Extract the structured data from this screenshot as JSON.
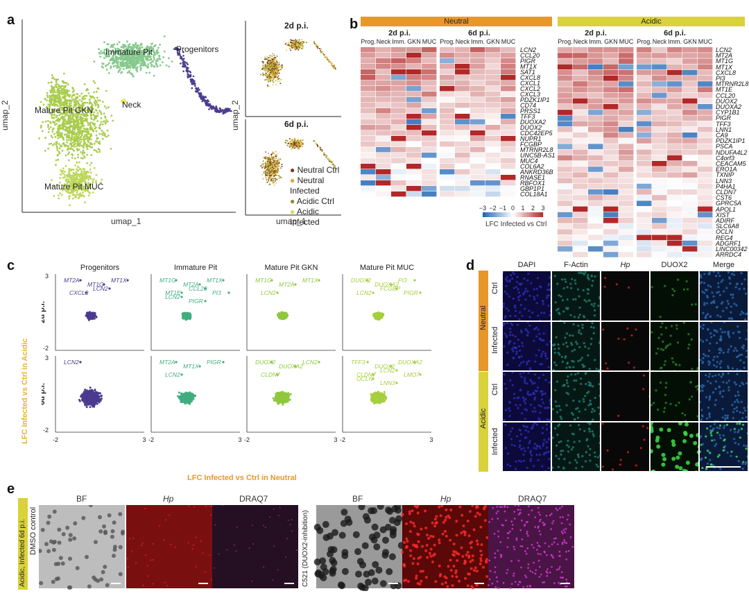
{
  "panel_labels": {
    "a": "a",
    "b": "b",
    "c": "c",
    "d": "d",
    "e": "e"
  },
  "panel_a": {
    "clusters": [
      "Immature Pit",
      "Progenitors",
      "Neck",
      "Mature Pit GKN",
      "Mature Pit MUC"
    ],
    "xlabel": "umap_1",
    "ylabel": "umap_2",
    "small_titles": [
      "2d p.i.",
      "6d p.i."
    ],
    "legend": [
      "Neutral Ctrl",
      "Neutral Infected",
      "Acidic Ctrl",
      "Acidic Infected"
    ],
    "colors": {
      "immature": "#86c98d",
      "progenitors": "#4b3b8f",
      "neck": "#f0e25a",
      "gkn": "#a9cc4c",
      "muc": "#bcd65a",
      "neutral_ctrl": "#7a3a1e",
      "neutral_infected": "#e3a23a",
      "acidic_ctrl": "#8a8a2a",
      "acidic_infected": "#d7d65a"
    }
  },
  "panel_b": {
    "group_neutral": "Neutral",
    "group_acidic": "Acidic",
    "time_2d": "2d p.i.",
    "time_6d": "6d p.i.",
    "columns": [
      "Prog.",
      "Neck",
      "Imm.",
      "GKN",
      "MUC"
    ],
    "neutral_genes": [
      "LCN2",
      "CCL20",
      "PIGR",
      "MT1X",
      "SAT1",
      "CXCL8",
      "CXCL1",
      "CXCL2",
      "CXCL3",
      "PDZK1IP1",
      "CD74",
      "PRSS1",
      "TFF3",
      "DUOXA2",
      "DUOX2",
      "CDC42EP5",
      "NUPR1",
      "FCGBP",
      "MTRNR2L8",
      "UNC5B-AS1",
      "MUC4",
      "COL6A2",
      "ANKRD36B",
      "RNASE1",
      "RBFOX1",
      "GBP1P1",
      "COL18A1"
    ],
    "acidic_genes": [
      "LCN2",
      "MT2A",
      "MT1G",
      "MT1X",
      "CXCL8",
      "PI3",
      "MTRNR2L8",
      "MT1E",
      "CCL20",
      "DUOX2",
      "DUOXA2",
      "CYP1B1",
      "PIGR",
      "TFF3",
      "LNN1",
      "CA9",
      "PDZK1IP1",
      "PSCA",
      "NDUFA4L2",
      "C4orf3",
      "CEACAM5",
      "ERO1A",
      "TXNIP",
      "LNN3",
      "P4HA1",
      "CLDN7",
      "CST6",
      "GPRC5A",
      "APOL1",
      "XIST",
      "ADIRF",
      "SLC6A8",
      "OCLN",
      "REG4",
      "ADGRF1",
      "LINC00342",
      "ARRDC4"
    ],
    "colorbar_ticks": [
      "−3",
      "−2",
      "−1",
      "0",
      "1",
      "2",
      "3"
    ],
    "colorbar_label": "LFC Infected vs Ctrl",
    "colors": {
      "neutral_bar": "#e8972b",
      "acidic_bar": "#d9d23a",
      "pos": "#c0392b",
      "neg": "#2b6fb5"
    }
  },
  "panel_c": {
    "columns": [
      "Progenitors",
      "Immature Pit",
      "Mature Pit GKN",
      "Mature Pit MUC"
    ],
    "rows": [
      "2d p.i.",
      "6d p.i."
    ],
    "ylabel": "LFC Infected vs Ctrl in Acidic",
    "xlabel": "LFC Infected vs Ctrl in Neutral",
    "x_ticks": [
      "-2",
      "3"
    ],
    "y_ticks": [
      "3",
      "-2"
    ],
    "colors": [
      "#4b3b8f",
      "#41ad80",
      "#8fc73e",
      "#a5cf3e"
    ],
    "annotations": [
      [
        [
          "MT2A",
          "MT1G",
          "MT1X",
          "CXCL8",
          "LCN2"
        ],
        [
          "LCN2"
        ]
      ],
      [
        [
          "MT1G",
          "MT2A",
          "MT1X",
          "MT1E",
          "CCL20",
          "PI3",
          "LCN2",
          "PIGR"
        ],
        [
          "MT2A",
          "MT1X",
          "PIGR",
          "LCN2"
        ]
      ],
      [
        [
          "MT1G",
          "MT2A",
          "MT1X",
          "LCN2"
        ],
        [
          "DUOX2",
          "DUOXA2",
          "LCN2",
          "CLDN7"
        ]
      ],
      [
        [
          "DUOX2",
          "DUOXA2",
          "PI3",
          "LCN2",
          "FCGBP",
          "PIGR"
        ],
        [
          "TFF3",
          "DUOX2",
          "DUOXA2",
          "CLDN7",
          "LCN2",
          "LMO7",
          "OCLN",
          "LNN3"
        ]
      ]
    ]
  },
  "panel_d": {
    "columns": [
      "DAPI",
      "F-Actin",
      "Hp",
      "DUOX2",
      "Merge"
    ],
    "groups": [
      "Neutral",
      "Acidic"
    ],
    "rows": [
      "Ctrl",
      "Infected",
      "Ctrl",
      "Infected"
    ],
    "colors": {
      "neutral": "#e8972b",
      "acidic": "#d9d23a"
    }
  },
  "panel_e": {
    "side_label": "Acidic, Infected 6d p.i.",
    "row1": "DMSO control",
    "row2": "C521 (DUOX2-inhibition)",
    "columns": [
      "BF",
      "Hp",
      "DRAQ7"
    ]
  }
}
